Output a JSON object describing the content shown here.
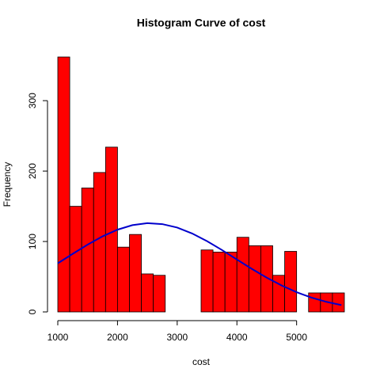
{
  "chart_data": {
    "type": "histogram",
    "title": "Histogram Curve of cost",
    "x_label": "cost",
    "y_label": "Frequency",
    "bins": [
      1000,
      1200,
      1400,
      1600,
      1800,
      2000,
      2200,
      2400,
      2600,
      2800,
      3000,
      3200,
      3400,
      3600,
      3800,
      4000,
      4200,
      4400,
      4600,
      4800,
      5000,
      5200,
      5400,
      5600,
      5800
    ],
    "values": [
      362,
      150,
      176,
      198,
      234,
      92,
      110,
      54,
      52,
      0,
      0,
      0,
      88,
      85,
      85,
      106,
      94,
      94,
      52,
      86,
      0,
      27,
      27,
      27
    ],
    "color": "#ff0000",
    "curve": {
      "color": "#0000cc",
      "x": [
        1000,
        1250,
        1500,
        1750,
        2000,
        2250,
        2500,
        2750,
        3000,
        3250,
        3500,
        3750,
        4000,
        4250,
        4500,
        4750,
        5000,
        5250,
        5500,
        5750
      ],
      "y": [
        69.0,
        82.5,
        95.6,
        107.3,
        116.8,
        123.2,
        126.0,
        124.7,
        119.8,
        111.4,
        100.5,
        87.9,
        74.4,
        61.1,
        48.6,
        37.5,
        28.0,
        20.3,
        14.3,
        9.7
      ]
    },
    "xlim": [
      1000,
      5800
    ],
    "ylim": [
      0,
      362
    ],
    "xticks": [
      1000,
      2000,
      3000,
      4000,
      5000
    ],
    "yticks": [
      0,
      100,
      200,
      300
    ]
  }
}
